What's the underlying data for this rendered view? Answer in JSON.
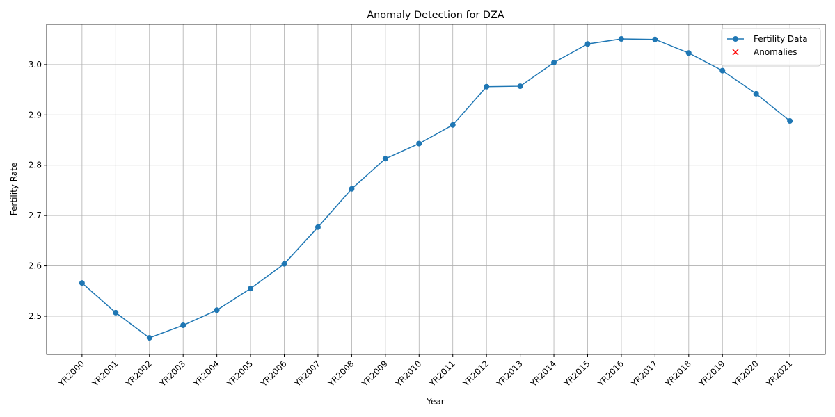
{
  "chart_data": {
    "type": "line",
    "title": "Anomaly Detection for DZA",
    "x_label": "Year",
    "y_label": "Fertility Rate",
    "categories": [
      "YR2000",
      "YR2001",
      "YR2002",
      "YR2003",
      "YR2004",
      "YR2005",
      "YR2006",
      "YR2007",
      "YR2008",
      "YR2009",
      "YR2010",
      "YR2011",
      "YR2012",
      "YR2013",
      "YR2014",
      "YR2015",
      "YR2016",
      "YR2017",
      "YR2018",
      "YR2019",
      "YR2020",
      "YR2021"
    ],
    "series": [
      {
        "name": "Fertility Data",
        "color": "#1f77b4",
        "marker": "o",
        "values": [
          2.566,
          2.507,
          2.457,
          2.482,
          2.512,
          2.555,
          2.604,
          2.677,
          2.753,
          2.813,
          2.843,
          2.88,
          2.956,
          2.957,
          3.004,
          3.041,
          3.051,
          3.05,
          3.023,
          2.988,
          2.942,
          2.888
        ]
      },
      {
        "name": "Anomalies",
        "color": "#ff0000",
        "marker": "x",
        "values": [
          null,
          null,
          null,
          null,
          null,
          null,
          null,
          null,
          null,
          null,
          null,
          null,
          null,
          null,
          null,
          null,
          null,
          null,
          null,
          null,
          null,
          null
        ]
      }
    ],
    "ylim": [
      2.424,
      3.08
    ],
    "yticks": [
      2.5,
      2.6,
      2.7,
      2.8,
      2.9,
      {
        "value": 3.0,
        "label": "3.0"
      }
    ],
    "grid": true,
    "legend": "upper right"
  }
}
